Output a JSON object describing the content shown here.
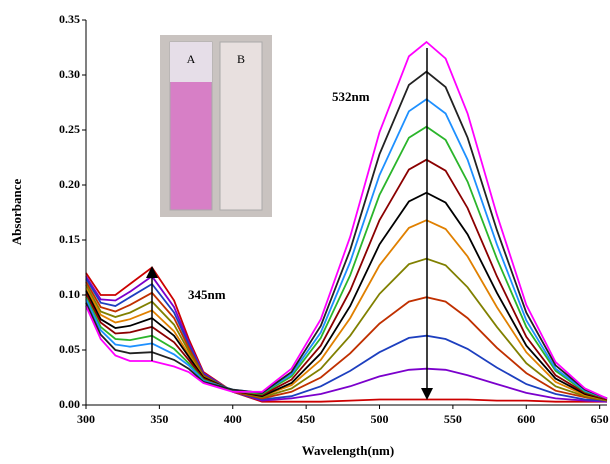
{
  "chart_data": {
    "type": "line",
    "xlabel": "Wavelength(nm)",
    "ylabel": "Absorbance",
    "x": [
      300,
      310,
      320,
      330,
      345,
      360,
      370,
      380,
      400,
      420,
      440,
      460,
      480,
      500,
      520,
      532,
      545,
      560,
      580,
      600,
      620,
      640,
      655
    ],
    "series": [
      {
        "color": "#cc0000",
        "values": [
          0.12,
          0.1,
          0.1,
          0.11,
          0.125,
          0.095,
          0.06,
          0.03,
          0.012,
          0.003,
          0.003,
          0.003,
          0.004,
          0.005,
          0.005,
          0.005,
          0.005,
          0.005,
          0.004,
          0.004,
          0.003,
          0.003,
          0.003
        ]
      },
      {
        "color": "#7b00cc",
        "values": [
          0.117,
          0.096,
          0.095,
          0.103,
          0.117,
          0.089,
          0.057,
          0.029,
          0.012,
          0.004,
          0.006,
          0.01,
          0.017,
          0.026,
          0.032,
          0.033,
          0.032,
          0.027,
          0.019,
          0.011,
          0.006,
          0.004,
          0.003
        ]
      },
      {
        "color": "#1d3fbf",
        "values": [
          0.115,
          0.093,
          0.09,
          0.098,
          0.11,
          0.084,
          0.055,
          0.028,
          0.012,
          0.005,
          0.008,
          0.017,
          0.031,
          0.048,
          0.061,
          0.063,
          0.06,
          0.051,
          0.034,
          0.019,
          0.01,
          0.005,
          0.004
        ]
      },
      {
        "color": "#c03000",
        "values": [
          0.112,
          0.089,
          0.085,
          0.091,
          0.102,
          0.079,
          0.052,
          0.027,
          0.012,
          0.006,
          0.012,
          0.025,
          0.047,
          0.074,
          0.094,
          0.098,
          0.094,
          0.079,
          0.052,
          0.029,
          0.013,
          0.007,
          0.004
        ]
      },
      {
        "color": "#808000",
        "values": [
          0.109,
          0.085,
          0.08,
          0.084,
          0.094,
          0.073,
          0.049,
          0.026,
          0.013,
          0.007,
          0.015,
          0.033,
          0.063,
          0.101,
          0.128,
          0.133,
          0.127,
          0.107,
          0.071,
          0.038,
          0.017,
          0.008,
          0.004
        ]
      },
      {
        "color": "#e08000",
        "values": [
          0.106,
          0.082,
          0.075,
          0.078,
          0.086,
          0.067,
          0.046,
          0.025,
          0.013,
          0.008,
          0.018,
          0.041,
          0.079,
          0.127,
          0.161,
          0.168,
          0.16,
          0.135,
          0.089,
          0.048,
          0.021,
          0.009,
          0.005
        ]
      },
      {
        "color": "#000000",
        "values": [
          0.104,
          0.078,
          0.07,
          0.072,
          0.079,
          0.063,
          0.044,
          0.025,
          0.013,
          0.008,
          0.02,
          0.047,
          0.09,
          0.146,
          0.185,
          0.193,
          0.184,
          0.155,
          0.102,
          0.054,
          0.024,
          0.01,
          0.005
        ]
      },
      {
        "color": "#8b0000",
        "values": [
          0.101,
          0.075,
          0.065,
          0.066,
          0.071,
          0.057,
          0.041,
          0.024,
          0.013,
          0.009,
          0.023,
          0.054,
          0.104,
          0.168,
          0.214,
          0.223,
          0.213,
          0.179,
          0.117,
          0.062,
          0.027,
          0.011,
          0.005
        ]
      },
      {
        "color": "#2bb52b",
        "values": [
          0.098,
          0.071,
          0.06,
          0.059,
          0.063,
          0.051,
          0.038,
          0.023,
          0.013,
          0.01,
          0.026,
          0.061,
          0.118,
          0.191,
          0.243,
          0.253,
          0.241,
          0.203,
          0.133,
          0.071,
          0.031,
          0.012,
          0.006
        ]
      },
      {
        "color": "#1e90ff",
        "values": [
          0.096,
          0.068,
          0.055,
          0.053,
          0.056,
          0.046,
          0.036,
          0.022,
          0.014,
          0.011,
          0.028,
          0.066,
          0.13,
          0.209,
          0.267,
          0.278,
          0.265,
          0.223,
          0.146,
          0.077,
          0.033,
          0.013,
          0.006
        ]
      },
      {
        "color": "#222222",
        "values": [
          0.093,
          0.064,
          0.05,
          0.047,
          0.048,
          0.041,
          0.033,
          0.021,
          0.014,
          0.011,
          0.03,
          0.072,
          0.141,
          0.228,
          0.291,
          0.303,
          0.289,
          0.243,
          0.159,
          0.084,
          0.036,
          0.014,
          0.006
        ]
      },
      {
        "color": "#ff00ff",
        "values": [
          0.09,
          0.06,
          0.045,
          0.04,
          0.04,
          0.035,
          0.03,
          0.02,
          0.012,
          0.012,
          0.033,
          0.078,
          0.153,
          0.248,
          0.317,
          0.33,
          0.315,
          0.265,
          0.173,
          0.091,
          0.039,
          0.015,
          0.006
        ]
      }
    ],
    "xlim": [
      300,
      655
    ],
    "xticks": [
      300,
      350,
      400,
      450,
      500,
      550,
      600,
      650
    ],
    "ylim": [
      0,
      0.35
    ],
    "yticks": [
      {
        "value": 0,
        "label": "0.00"
      },
      0.05,
      {
        "value": 0.1,
        "label": "0.10"
      },
      0.15,
      {
        "value": 0.2,
        "label": "0.20"
      },
      0.25,
      {
        "value": 0.3,
        "label": "0.30"
      },
      0.35
    ],
    "annotations": [
      "532nm",
      "345nm"
    ],
    "inset_labels": [
      "A",
      "B"
    ]
  }
}
